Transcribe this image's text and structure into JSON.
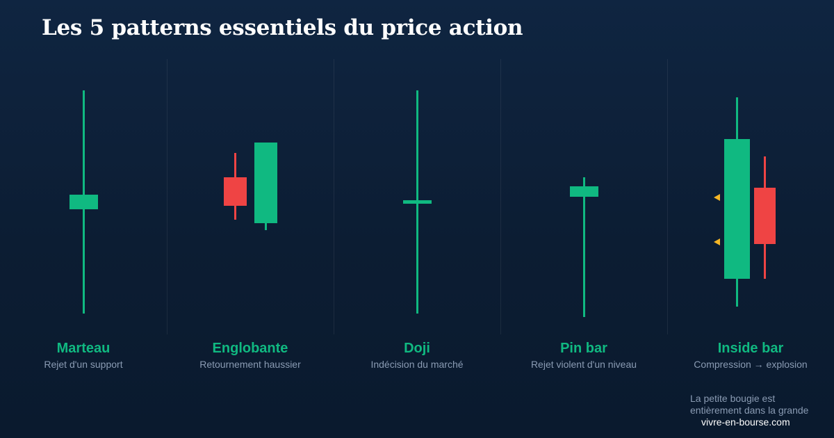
{
  "title": "Les 5 patterns essentiels du price action",
  "colors": {
    "bullish": "#10b981",
    "bearish": "#ef4444",
    "marker": "#f5b626",
    "background": "#0c1d33"
  },
  "patterns": [
    {
      "name": "Marteau",
      "description": "Rejet d'un support"
    },
    {
      "name": "Englobante",
      "description": "Retournement haussier"
    },
    {
      "name": "Doji",
      "description": "Indécision du marché"
    },
    {
      "name": "Pin bar",
      "description": "Rejet violent d'un niveau"
    },
    {
      "name": "Inside bar",
      "description": "Compression → explosion"
    }
  ],
  "note": "La petite bougie est entièrement dans la grande",
  "source": "vivre-en-bourse.com"
}
